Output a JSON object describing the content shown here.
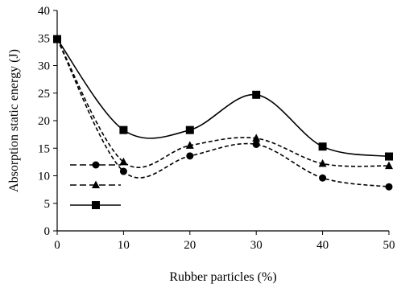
{
  "chart_data": {
    "type": "line",
    "xlabel": "Rubber particles (%)",
    "ylabel": "Absorption static energy (J)",
    "xlim": [
      0,
      50
    ],
    "ylim": [
      0,
      40
    ],
    "xticks": [
      0,
      10,
      20,
      30,
      40,
      50
    ],
    "yticks": [
      0,
      5,
      10,
      15,
      20,
      25,
      30,
      35,
      40
    ],
    "grid": false,
    "legend": "bottom-left",
    "x": [
      0,
      10,
      20,
      30,
      40,
      50
    ],
    "series": [
      {
        "marker": "square",
        "line": "solid",
        "values": [
          34.8,
          18.3,
          18.3,
          24.7,
          15.3,
          13.5
        ]
      },
      {
        "marker": "triangle",
        "line": "dashed",
        "values": [
          34.8,
          12.5,
          15.5,
          16.8,
          12.2,
          11.8
        ]
      },
      {
        "marker": "circle",
        "line": "dashed",
        "values": [
          34.8,
          10.8,
          13.6,
          15.7,
          9.6,
          8.0
        ]
      }
    ]
  }
}
